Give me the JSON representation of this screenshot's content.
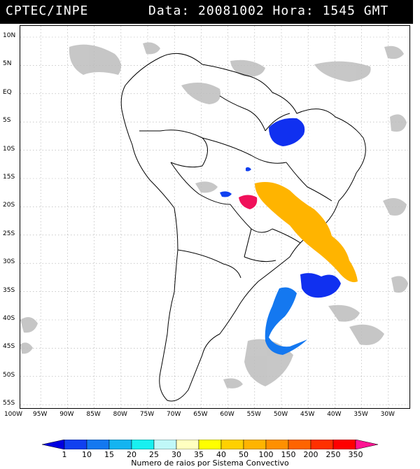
{
  "header": {
    "source": "CPTEC/INPE",
    "timestamp": "Data: 20081002 Hora: 1545 GMT"
  },
  "axes": {
    "lat_labels": [
      "10N",
      "5N",
      "EQ",
      "5S",
      "10S",
      "15S",
      "20S",
      "25S",
      "30S",
      "35S",
      "40S",
      "45S",
      "50S",
      "55S"
    ],
    "lon_labels": [
      "100W",
      "95W",
      "90W",
      "85W",
      "80W",
      "75W",
      "70W",
      "65W",
      "60W",
      "55W",
      "50W",
      "45W",
      "40W",
      "35W",
      "30W"
    ]
  },
  "colorbar": {
    "title": "Numero de raios por Sistema Convectivo",
    "ticks": [
      "1",
      "10",
      "15",
      "20",
      "25",
      "30",
      "35",
      "40",
      "50",
      "100",
      "150",
      "200",
      "250",
      "350"
    ],
    "colors": [
      "#0000e0",
      "#1040f0",
      "#1478f0",
      "#14b4f0",
      "#18f0f0",
      "#c0f8f8",
      "#ffffc0",
      "#ffff00",
      "#ffd000",
      "#ffb400",
      "#ff9000",
      "#ff6400",
      "#ff3000",
      "#ff0000",
      "#ff1493"
    ]
  },
  "systems": [
    {
      "label": "NE Brazil cluster",
      "color": "#1030f0"
    },
    {
      "label": "Bolivia small",
      "color": "#1040f0"
    },
    {
      "label": "Pantanal pink",
      "color": "#f0105a"
    },
    {
      "label": "SE Brazil band",
      "color": "#ffb400"
    },
    {
      "label": "Atlantic blue south",
      "color": "#1030f0"
    },
    {
      "label": "Atlantic curve",
      "color": "#1478f0"
    }
  ]
}
